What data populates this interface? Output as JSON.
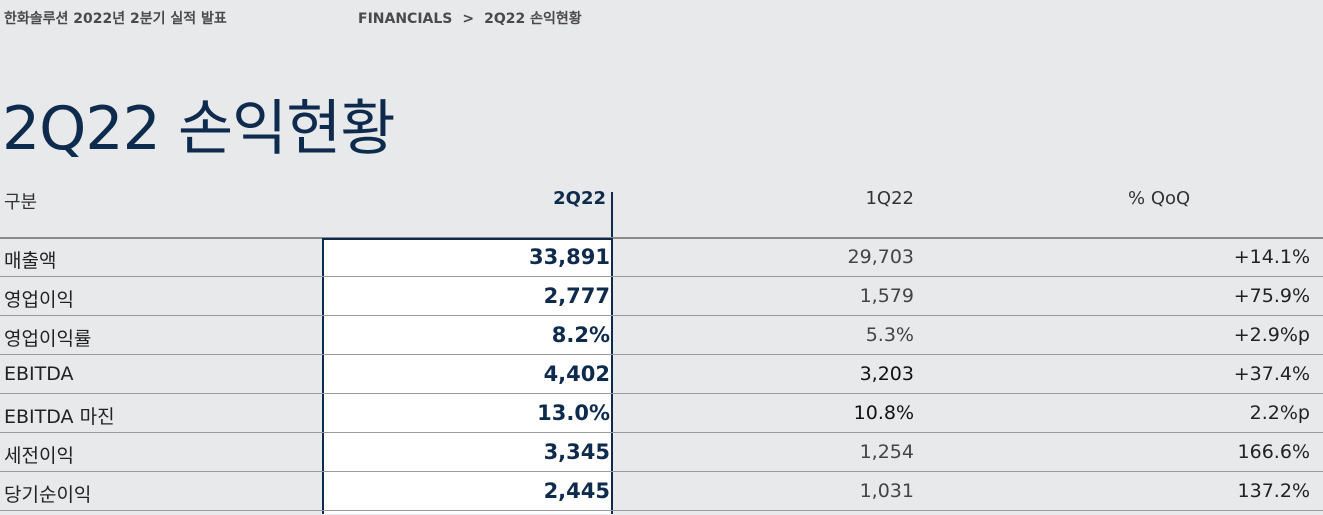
{
  "header": {
    "doc_title": "한화솔루션 2022년 2분기 실적 발표",
    "breadcrumb": {
      "section": "FINANCIALS",
      "separator": ">",
      "page": "2Q22 손익현황"
    }
  },
  "page_title": "2Q22 손익현황",
  "table": {
    "columns": {
      "label": "구분",
      "current": "2Q22",
      "previous": "1Q22",
      "change": "% QoQ"
    },
    "rows": [
      {
        "label": "매출액",
        "current": "33,891",
        "previous": "29,703",
        "change": "+14.1%"
      },
      {
        "label": "영업이익",
        "current": "2,777",
        "previous": "1,579",
        "change": "+75.9%"
      },
      {
        "label": "영업이익률",
        "current": "8.2%",
        "previous": "5.3%",
        "change": "+2.9%p"
      },
      {
        "label": "EBITDA",
        "current": "4,402",
        "previous": "3,203",
        "change": "+37.4%"
      },
      {
        "label": "EBITDA 마진",
        "current": "13.0%",
        "previous": "10.8%",
        "change": "2.2%p"
      },
      {
        "label": "세전이익",
        "current": "3,345",
        "previous": "1,254",
        "change": "166.6%"
      },
      {
        "label": "당기순이익",
        "current": "2,445",
        "previous": "1,031",
        "change": "137.2%"
      }
    ]
  },
  "colors": {
    "accent": "#0e2a4d",
    "background": "#e8e9eb",
    "highlight": "#ffffff"
  }
}
